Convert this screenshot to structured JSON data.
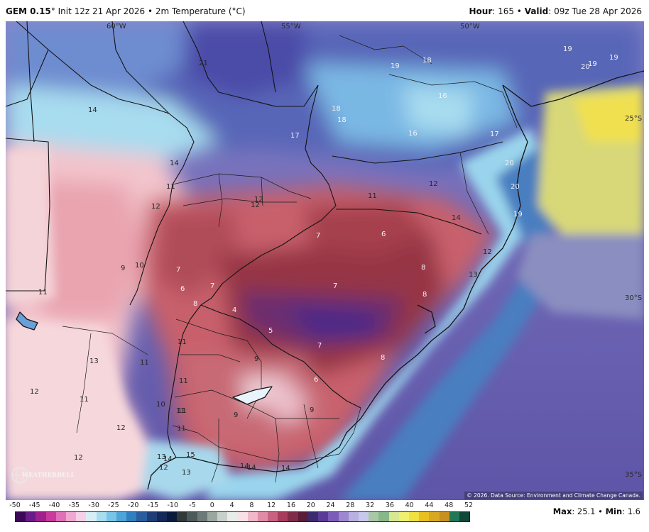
{
  "header": {
    "model": "GEM 0.15",
    "run_info": "° Init 12z 21 Apr 2026 • 2m Temperature (°C)",
    "hour_label": "Hour",
    "hour_value": ": 165 • ",
    "valid_label": "Valid",
    "valid_value": ": 09z Tue 28 Apr 2026"
  },
  "map": {
    "lon_labels": [
      "60°W",
      "55°W",
      "50°W"
    ],
    "lat_labels": [
      "25°S",
      "30°S",
      "35°S"
    ],
    "copyright": "© 2026. Data Source: Environment and Climate Change Canada.",
    "logo_text": "WEATHERBELL",
    "values": [
      {
        "t": "21",
        "c": "dark"
      },
      {
        "t": "14",
        "c": "dark"
      },
      {
        "t": "19",
        "c": "light"
      },
      {
        "t": "18",
        "c": "light"
      },
      {
        "t": "18",
        "c": "light"
      },
      {
        "t": "18",
        "c": "light"
      },
      {
        "t": "16",
        "c": "light"
      },
      {
        "t": "16",
        "c": "light"
      },
      {
        "t": "17",
        "c": "light"
      },
      {
        "t": "17",
        "c": "light"
      },
      {
        "t": "19",
        "c": "light"
      },
      {
        "t": "20",
        "c": "light"
      },
      {
        "t": "19",
        "c": "light"
      },
      {
        "t": "19",
        "c": "light"
      },
      {
        "t": "20",
        "c": "light"
      },
      {
        "t": "20",
        "c": "light"
      },
      {
        "t": "19",
        "c": "light"
      },
      {
        "t": "14",
        "c": "dark"
      },
      {
        "t": "11",
        "c": "dark"
      },
      {
        "t": "12",
        "c": "dark"
      },
      {
        "t": "12",
        "c": "dark"
      },
      {
        "t": "12",
        "c": "dark"
      },
      {
        "t": "11",
        "c": "dark"
      },
      {
        "t": "12",
        "c": "dark"
      },
      {
        "t": "14",
        "c": "dark"
      },
      {
        "t": "12",
        "c": "dark"
      },
      {
        "t": "13",
        "c": "dark"
      },
      {
        "t": "7",
        "c": "light"
      },
      {
        "t": "6",
        "c": "light"
      },
      {
        "t": "7",
        "c": "light"
      },
      {
        "t": "6",
        "c": "light"
      },
      {
        "t": "7",
        "c": "light"
      },
      {
        "t": "8",
        "c": "light"
      },
      {
        "t": "8",
        "c": "light"
      },
      {
        "t": "7",
        "c": "light"
      },
      {
        "t": "4",
        "c": "light"
      },
      {
        "t": "5",
        "c": "light"
      },
      {
        "t": "7",
        "c": "light"
      },
      {
        "t": "8",
        "c": "light"
      },
      {
        "t": "6",
        "c": "light"
      },
      {
        "t": "8",
        "c": "light"
      },
      {
        "t": "9",
        "c": "dark"
      },
      {
        "t": "10",
        "c": "dark"
      },
      {
        "t": "11",
        "c": "dark"
      },
      {
        "t": "11",
        "c": "dark"
      },
      {
        "t": "11",
        "c": "dark"
      },
      {
        "t": "13",
        "c": "dark"
      },
      {
        "t": "11",
        "c": "dark"
      },
      {
        "t": "12",
        "c": "dark"
      },
      {
        "t": "11",
        "c": "dark"
      },
      {
        "t": "11",
        "c": "dark"
      },
      {
        "t": "9",
        "c": "dark"
      },
      {
        "t": "11",
        "c": "dark"
      },
      {
        "t": "10",
        "c": "dark"
      },
      {
        "t": "11",
        "c": "dark"
      },
      {
        "t": "9",
        "c": "dark"
      },
      {
        "t": "9",
        "c": "dark"
      },
      {
        "t": "12",
        "c": "dark"
      },
      {
        "t": "12",
        "c": "dark"
      },
      {
        "t": "13",
        "c": "dark"
      },
      {
        "t": "14",
        "c": "dark"
      },
      {
        "t": "12",
        "c": "dark"
      },
      {
        "t": "15",
        "c": "dark"
      },
      {
        "t": "13",
        "c": "dark"
      },
      {
        "t": "14",
        "c": "dark"
      },
      {
        "t": "14",
        "c": "dark"
      },
      {
        "t": "14",
        "c": "dark"
      }
    ]
  },
  "colorbar": {
    "ticks": [
      "-50",
      "-45",
      "-40",
      "-35",
      "-30",
      "-25",
      "-20",
      "-15",
      "-10",
      "-5",
      "0",
      "4",
      "8",
      "12",
      "16",
      "20",
      "24",
      "28",
      "32",
      "36",
      "40",
      "44",
      "48",
      "52"
    ],
    "colors": [
      "#3b0a57",
      "#6a1b8a",
      "#a0208e",
      "#c83a9c",
      "#e070b8",
      "#f0a8d2",
      "#f5d0e8",
      "#d8eef6",
      "#a8dcef",
      "#78c4e6",
      "#4ea4d6",
      "#2f7fc0",
      "#2a5c9e",
      "#1f3e78",
      "#14285a",
      "#0a1a3c",
      "#303a3a",
      "#4c5a5a",
      "#6e7a78",
      "#9aa6a0",
      "#c8d0cc",
      "#e8ece8",
      "#f8e0e8",
      "#f0b8c8",
      "#e08ca8",
      "#c86280",
      "#a83c5c",
      "#802c48",
      "#5a1c38",
      "#3c2a6e",
      "#5a3c98",
      "#7c5cb8",
      "#9c88d0",
      "#b8b0e0",
      "#c8c8ec",
      "#a8c8a8",
      "#88b888",
      "#d8e890",
      "#f0f070",
      "#f0e040",
      "#e8c020",
      "#d8a820",
      "#c89020",
      "#207858",
      "#104838"
    ]
  },
  "stats": {
    "max_label": "Max",
    "max_value": ": 25.1 • ",
    "min_label": "Min",
    "min_value": ": 1.6"
  }
}
